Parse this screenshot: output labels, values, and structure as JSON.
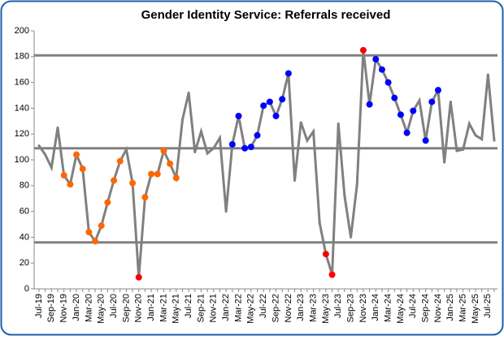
{
  "chart_data": {
    "type": "line",
    "title": "Gender Identity Service: Referrals received",
    "categories": [
      "Jul-19",
      null,
      "Sep-19",
      null,
      "Nov-19",
      null,
      "Jan-20",
      null,
      "Mar-20",
      null,
      "May-20",
      null,
      "Jul-20",
      null,
      "Sep-20",
      null,
      "Nov-20",
      null,
      "Jan-21",
      null,
      "Mar-21",
      null,
      "May-21",
      null,
      "Jul-21",
      null,
      "Sep-21",
      null,
      "Nov-21",
      null,
      "Jan-22",
      null,
      "Mar-22",
      null,
      "May-22",
      null,
      "Jul-22",
      null,
      "Sep-22",
      null,
      "Nov-22",
      null,
      "Jan-23",
      null,
      "Mar-23",
      null,
      "May-23",
      null,
      "Jul-23",
      null,
      "Sep-23",
      null,
      "Nov-23",
      null,
      "Jan-24",
      null,
      "Mar-24",
      null,
      "May-24",
      null,
      "Jul-24",
      null,
      "Sep-24",
      null,
      "Nov-24",
      null,
      "Jan-25",
      null,
      "Mar-25",
      null,
      "May-25",
      null,
      "Jul-25",
      null
    ],
    "series": [
      {
        "color": "#808080",
        "values": [
          111,
          104,
          94,
          125,
          88,
          81,
          104,
          93,
          44,
          37,
          49,
          67,
          84,
          99,
          108,
          82,
          9,
          71,
          89,
          89,
          107,
          97,
          86,
          131,
          152,
          106,
          122,
          105,
          109,
          117,
          60,
          112,
          134,
          109,
          110,
          119,
          142,
          145,
          134,
          147,
          167,
          84,
          129,
          115,
          122,
          51,
          27,
          11,
          128,
          72,
          40,
          81,
          185,
          143,
          178,
          170,
          160,
          148,
          135,
          121,
          138,
          146,
          115,
          145,
          154,
          98,
          145,
          107,
          108,
          128,
          119,
          116,
          166,
          115
        ],
        "marker_colors": [
          null,
          null,
          null,
          null,
          "#ff6600",
          "#ff6600",
          "#ff6600",
          "#ff6600",
          "#ff6600",
          "#ff6600",
          "#ff6600",
          "#ff6600",
          "#ff6600",
          "#ff6600",
          null,
          "#ff6600",
          "#ff0000",
          "#ff6600",
          "#ff6600",
          "#ff6600",
          "#ff6600",
          "#ff6600",
          "#ff6600",
          null,
          null,
          null,
          null,
          null,
          null,
          null,
          null,
          "#0000ff",
          "#0000ff",
          "#0000ff",
          "#0000ff",
          "#0000ff",
          "#0000ff",
          "#0000ff",
          "#0000ff",
          "#0000ff",
          "#0000ff",
          null,
          null,
          null,
          null,
          null,
          "#ff0000",
          "#ff0000",
          null,
          null,
          null,
          null,
          "#ff0000",
          "#0000ff",
          "#0000ff",
          "#0000ff",
          "#0000ff",
          "#0000ff",
          "#0000ff",
          "#0000ff",
          "#0000ff",
          null,
          "#0000ff",
          "#0000ff",
          "#0000ff",
          null,
          null,
          null,
          null,
          null,
          null,
          null,
          null,
          null
        ]
      }
    ],
    "hlines": [
      181,
      109,
      36
    ],
    "hline_color": "#808080",
    "ylim": [
      0,
      200
    ],
    "yticks": [
      0,
      20,
      40,
      60,
      80,
      100,
      120,
      140,
      160,
      180,
      200
    ],
    "grid": false
  }
}
